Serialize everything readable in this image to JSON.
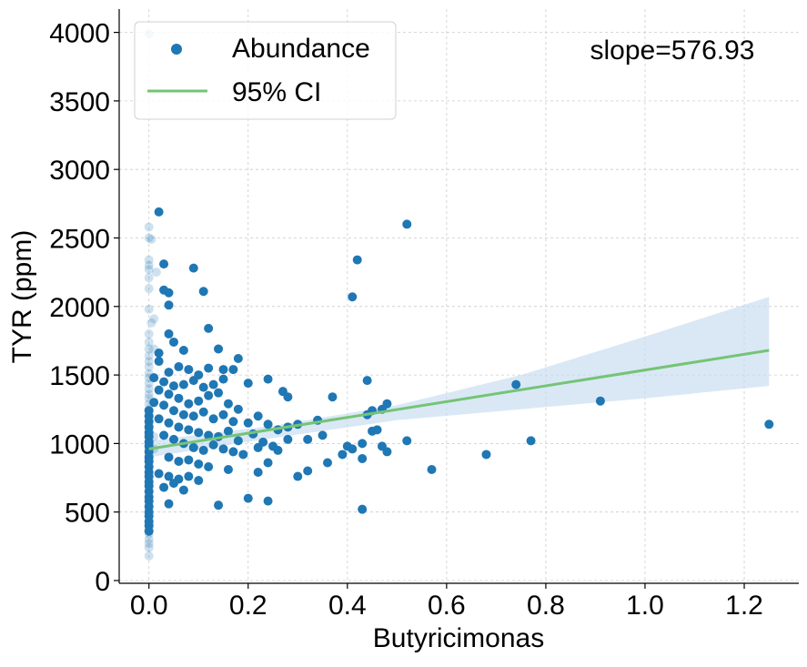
{
  "chart_data": {
    "type": "scatter",
    "title": "",
    "xlabel": "Butyricimonas",
    "ylabel": "TYR (ppm)",
    "xlim": [
      -0.06,
      1.31
    ],
    "ylim": [
      -20,
      4170
    ],
    "xticks": [
      0.0,
      0.2,
      0.4,
      0.6,
      0.8,
      1.0,
      1.2
    ],
    "xtick_labels": [
      "0.0",
      "0.2",
      "0.4",
      "0.6",
      "0.8",
      "1.0",
      "1.2"
    ],
    "yticks": [
      0,
      500,
      1000,
      1500,
      2000,
      2500,
      3000,
      3500,
      4000
    ],
    "ytick_labels": [
      "0",
      "500",
      "1000",
      "1500",
      "2000",
      "2500",
      "3000",
      "3500",
      "4000"
    ],
    "grid": true,
    "legend_position": "top-left",
    "annotation": "slope=576.93",
    "colors": {
      "points": "#1f77b4",
      "ci_fill": "#c6dbef",
      "ci_line": "#74c476",
      "grid": "#cccccc"
    },
    "series": [
      {
        "name": "Abundance",
        "kind": "scatter",
        "points": [
          [
            0.02,
            2690
          ],
          [
            0.03,
            2310
          ],
          [
            0.09,
            2280
          ],
          [
            0.11,
            2110
          ],
          [
            0.04,
            2100
          ],
          [
            0.03,
            2120
          ],
          [
            0.04,
            2010
          ],
          [
            0.12,
            1840
          ],
          [
            0.04,
            1800
          ],
          [
            0.05,
            1740
          ],
          [
            0.07,
            1680
          ],
          [
            0.14,
            1690
          ],
          [
            0.18,
            1620
          ],
          [
            0.02,
            1660
          ],
          [
            0.02,
            1600
          ],
          [
            0.06,
            1560
          ],
          [
            0.08,
            1540
          ],
          [
            0.12,
            1550
          ],
          [
            0.15,
            1540
          ],
          [
            0.17,
            1540
          ],
          [
            0.1,
            1500
          ],
          [
            0.04,
            1520
          ],
          [
            0.01,
            1480
          ],
          [
            0.03,
            1450
          ],
          [
            0.05,
            1420
          ],
          [
            0.07,
            1430
          ],
          [
            0.09,
            1460
          ],
          [
            0.11,
            1410
          ],
          [
            0.13,
            1430
          ],
          [
            0.15,
            1470
          ],
          [
            0.2,
            1440
          ],
          [
            0.24,
            1470
          ],
          [
            0.27,
            1380
          ],
          [
            0.28,
            1340
          ],
          [
            0.02,
            1390
          ],
          [
            0.04,
            1360
          ],
          [
            0.06,
            1330
          ],
          [
            0.08,
            1290
          ],
          [
            0.1,
            1310
          ],
          [
            0.12,
            1350
          ],
          [
            0.14,
            1370
          ],
          [
            0.16,
            1290
          ],
          [
            0.18,
            1250
          ],
          [
            0.01,
            1300
          ],
          [
            0.03,
            1280
          ],
          [
            0.05,
            1240
          ],
          [
            0.07,
            1210
          ],
          [
            0.09,
            1200
          ],
          [
            0.11,
            1230
          ],
          [
            0.13,
            1180
          ],
          [
            0.15,
            1210
          ],
          [
            0.17,
            1160
          ],
          [
            0.2,
            1150
          ],
          [
            0.22,
            1200
          ],
          [
            0.24,
            1140
          ],
          [
            0.26,
            1100
          ],
          [
            0.28,
            1120
          ],
          [
            0.3,
            1140
          ],
          [
            0.02,
            1180
          ],
          [
            0.04,
            1150
          ],
          [
            0.06,
            1120
          ],
          [
            0.08,
            1100
          ],
          [
            0.1,
            1080
          ],
          [
            0.12,
            1060
          ],
          [
            0.14,
            1050
          ],
          [
            0.16,
            1090
          ],
          [
            0.18,
            1020
          ],
          [
            0.21,
            1070
          ],
          [
            0.23,
            1010
          ],
          [
            0.25,
            980
          ],
          [
            0.03,
            1060
          ],
          [
            0.05,
            1030
          ],
          [
            0.07,
            1000
          ],
          [
            0.09,
            970
          ],
          [
            0.11,
            950
          ],
          [
            0.13,
            990
          ],
          [
            0.15,
            960
          ],
          [
            0.17,
            940
          ],
          [
            0.19,
            920
          ],
          [
            0.22,
            970
          ],
          [
            0.24,
            860
          ],
          [
            0.26,
            950
          ],
          [
            0.28,
            1030
          ],
          [
            0.32,
            1030
          ],
          [
            0.04,
            900
          ],
          [
            0.06,
            870
          ],
          [
            0.08,
            880
          ],
          [
            0.1,
            850
          ],
          [
            0.12,
            830
          ],
          [
            0.16,
            810
          ],
          [
            0.22,
            790
          ],
          [
            0.02,
            780
          ],
          [
            0.04,
            760
          ],
          [
            0.06,
            740
          ],
          [
            0.08,
            760
          ],
          [
            0.1,
            730
          ],
          [
            0.05,
            710
          ],
          [
            0.07,
            660
          ],
          [
            0.03,
            680
          ],
          [
            0.2,
            600
          ],
          [
            0.24,
            580
          ],
          [
            0.14,
            550
          ],
          [
            0.04,
            560
          ],
          [
            0.3,
            760
          ],
          [
            0.32,
            800
          ],
          [
            0.34,
            1170
          ],
          [
            0.35,
            1060
          ],
          [
            0.36,
            860
          ],
          [
            0.37,
            1340
          ],
          [
            0.39,
            920
          ],
          [
            0.4,
            980
          ],
          [
            0.41,
            960
          ],
          [
            0.41,
            2070
          ],
          [
            0.42,
            2340
          ],
          [
            0.43,
            1000
          ],
          [
            0.43,
            890
          ],
          [
            0.44,
            1460
          ],
          [
            0.44,
            1210
          ],
          [
            0.45,
            1240
          ],
          [
            0.45,
            1090
          ],
          [
            0.46,
            1100
          ],
          [
            0.47,
            980
          ],
          [
            0.47,
            1250
          ],
          [
            0.48,
            940
          ],
          [
            0.48,
            1290
          ],
          [
            0.43,
            520
          ],
          [
            0.52,
            2600
          ],
          [
            0.52,
            1020
          ],
          [
            0.57,
            810
          ],
          [
            0.68,
            920
          ],
          [
            0.74,
            1430
          ],
          [
            0.77,
            1020
          ],
          [
            0.91,
            1310
          ],
          [
            1.25,
            1140
          ],
          [
            0.0,
            1160
          ],
          [
            0.0,
            1120
          ],
          [
            0.0,
            1080
          ],
          [
            0.0,
            1050
          ],
          [
            0.0,
            1010
          ],
          [
            0.0,
            980
          ],
          [
            0.0,
            940
          ],
          [
            0.0,
            900
          ],
          [
            0.0,
            870
          ],
          [
            0.0,
            830
          ],
          [
            0.0,
            790
          ],
          [
            0.0,
            760
          ],
          [
            0.0,
            720
          ],
          [
            0.0,
            690
          ],
          [
            0.0,
            650
          ],
          [
            0.0,
            610
          ],
          [
            0.0,
            580
          ],
          [
            0.0,
            540
          ],
          [
            0.0,
            500
          ],
          [
            0.0,
            470
          ],
          [
            0.0,
            430
          ],
          [
            0.0,
            400
          ],
          [
            0.0,
            360
          ],
          [
            0.0,
            1200
          ],
          [
            0.0,
            1240
          ]
        ]
      },
      {
        "name": "",
        "kind": "scatter-faded",
        "points": [
          [
            0.0,
            3990
          ],
          [
            0.0,
            2580
          ],
          [
            0.0,
            2500
          ],
          [
            0.005,
            2490
          ],
          [
            0.0,
            2340
          ],
          [
            0.0,
            2300
          ],
          [
            0.0,
            2270
          ],
          [
            0.0,
            2210
          ],
          [
            0.0,
            2130
          ],
          [
            0.015,
            2250
          ],
          [
            0.01,
            1910
          ],
          [
            0.005,
            1880
          ],
          [
            0.0,
            1980
          ],
          [
            0.0,
            1800
          ],
          [
            0.0,
            1740
          ],
          [
            0.0,
            1690
          ],
          [
            0.01,
            1690
          ],
          [
            0.0,
            1640
          ],
          [
            0.0,
            1600
          ],
          [
            0.0,
            1560
          ],
          [
            0.0,
            1510
          ],
          [
            0.0,
            1480
          ],
          [
            0.0,
            1440
          ],
          [
            0.0,
            1400
          ],
          [
            0.0,
            1360
          ],
          [
            0.0,
            1330
          ],
          [
            0.0,
            1290
          ],
          [
            0.0,
            1250
          ],
          [
            0.0,
            1220
          ],
          [
            0.0,
            1190
          ],
          [
            0.0,
            1140
          ],
          [
            0.0,
            1100
          ],
          [
            0.0,
            1060
          ],
          [
            0.0,
            1020
          ],
          [
            0.0,
            960
          ],
          [
            0.0,
            920
          ],
          [
            0.0,
            880
          ],
          [
            0.0,
            840
          ],
          [
            0.0,
            800
          ],
          [
            0.0,
            740
          ],
          [
            0.0,
            700
          ],
          [
            0.0,
            660
          ],
          [
            0.0,
            620
          ],
          [
            0.0,
            560
          ],
          [
            0.0,
            520
          ],
          [
            0.0,
            480
          ],
          [
            0.0,
            440
          ],
          [
            0.0,
            380
          ],
          [
            0.0,
            340
          ],
          [
            0.0,
            300
          ],
          [
            0.0,
            270
          ],
          [
            0.0,
            240
          ],
          [
            0.0,
            180
          ],
          [
            0.01,
            1050
          ],
          [
            0.01,
            960
          ]
        ]
      },
      {
        "name": "95% CI",
        "kind": "regression",
        "x": [
          0.0,
          1.25
        ],
        "y": [
          960,
          1680
        ]
      }
    ],
    "ci_band": {
      "x": [
        0.0,
        0.25,
        0.5,
        0.75,
        1.0,
        1.25
      ],
      "lower": [
        900,
        1040,
        1170,
        1250,
        1330,
        1420
      ],
      "upper": [
        1020,
        1130,
        1280,
        1500,
        1780,
        2070
      ]
    }
  }
}
